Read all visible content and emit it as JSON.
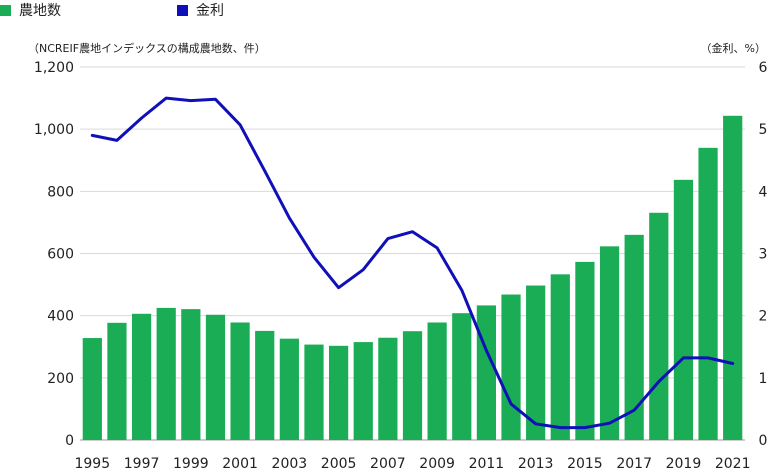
{
  "colors": {
    "bars": "#1aad55",
    "line": "#1010b8",
    "grid": "#d9d9d9"
  },
  "legend": [
    {
      "label": "農地数",
      "color": "#1aad55"
    },
    {
      "label": "金利",
      "color": "#1010b8"
    }
  ],
  "left_axis_note": "（NCREIF農地インデックスの構成農地数、件）",
  "right_axis_note": "（金利、%）",
  "chart_data": {
    "type": "bar",
    "x": [
      1995,
      1996,
      1997,
      1998,
      1999,
      2000,
      2001,
      2002,
      2003,
      2004,
      2005,
      2006,
      2007,
      2008,
      2009,
      2010,
      2011,
      2012,
      2013,
      2014,
      2015,
      2016,
      2017,
      2018,
      2019,
      2020,
      2021
    ],
    "x_tick_labels": [
      "1995",
      "1997",
      "1999",
      "2001",
      "2003",
      "2005",
      "2007",
      "2009",
      "2011",
      "2013",
      "2015",
      "2017",
      "2019",
      "2021"
    ],
    "series": [
      {
        "name": "農地数",
        "type": "bar",
        "axis": "left",
        "values": [
          328,
          377,
          406,
          425,
          421,
          403,
          378,
          351,
          326,
          307,
          303,
          315,
          329,
          350,
          378,
          408,
          433,
          468,
          497,
          533,
          573,
          623,
          660,
          731,
          837,
          940,
          1043
        ]
      },
      {
        "name": "金利",
        "type": "line",
        "axis": "right",
        "values": [
          4.9,
          4.82,
          5.18,
          5.5,
          5.46,
          5.48,
          5.07,
          4.33,
          3.57,
          2.94,
          2.45,
          2.74,
          3.24,
          3.35,
          3.09,
          2.41,
          1.44,
          0.58,
          0.26,
          0.2,
          0.2,
          0.27,
          0.48,
          0.94,
          1.32,
          1.32,
          1.23
        ]
      }
    ],
    "y_left": {
      "range": [
        0,
        1200
      ],
      "ticks": [
        0,
        200,
        400,
        600,
        800,
        1000,
        1200
      ],
      "tick_labels": [
        "0",
        "200",
        "400",
        "600",
        "800",
        "1,000",
        "1,200"
      ]
    },
    "y_right": {
      "range": [
        0,
        6
      ],
      "ticks": [
        0,
        1,
        2,
        3,
        4,
        5,
        6
      ],
      "tick_labels": [
        "0",
        "1",
        "2",
        "3",
        "4",
        "5",
        "6"
      ]
    },
    "grid": true,
    "legend_position": "top-left"
  }
}
